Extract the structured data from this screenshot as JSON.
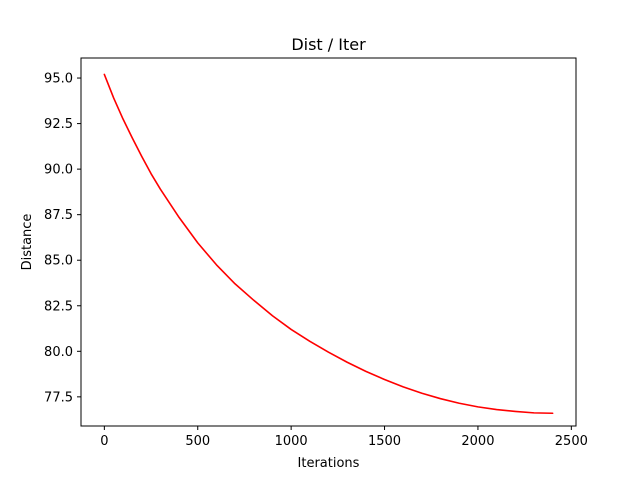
{
  "chart_data": {
    "type": "line",
    "title": "Dist / Iter",
    "xlabel": "Iterations",
    "ylabel": "Distance",
    "xlim": [
      -125,
      2525
    ],
    "ylim": [
      75.9,
      96.1
    ],
    "xticks": [
      0,
      500,
      1000,
      1500,
      2000,
      2500
    ],
    "xtick_labels": [
      "0",
      "500",
      "1000",
      "1500",
      "2000",
      "2500"
    ],
    "yticks": [
      77.5,
      80.0,
      82.5,
      85.0,
      87.5,
      90.0,
      92.5,
      95.0
    ],
    "ytick_labels": [
      "77.5",
      "80.0",
      "82.5",
      "85.0",
      "87.5",
      "90.0",
      "92.5",
      "95.0"
    ],
    "grid": false,
    "series": [
      {
        "color": "#ff0000",
        "x": [
          0,
          50,
          100,
          150,
          200,
          250,
          300,
          400,
          500,
          600,
          700,
          800,
          900,
          1000,
          1100,
          1200,
          1300,
          1400,
          1500,
          1600,
          1700,
          1800,
          1900,
          2000,
          2100,
          2200,
          2300,
          2400
        ],
        "y": [
          95.2,
          93.9,
          92.75,
          91.7,
          90.7,
          89.75,
          88.9,
          87.35,
          85.95,
          84.75,
          83.7,
          82.8,
          81.95,
          81.2,
          80.55,
          79.95,
          79.4,
          78.9,
          78.45,
          78.05,
          77.7,
          77.4,
          77.15,
          76.95,
          76.8,
          76.7,
          76.62,
          76.6
        ]
      }
    ]
  }
}
